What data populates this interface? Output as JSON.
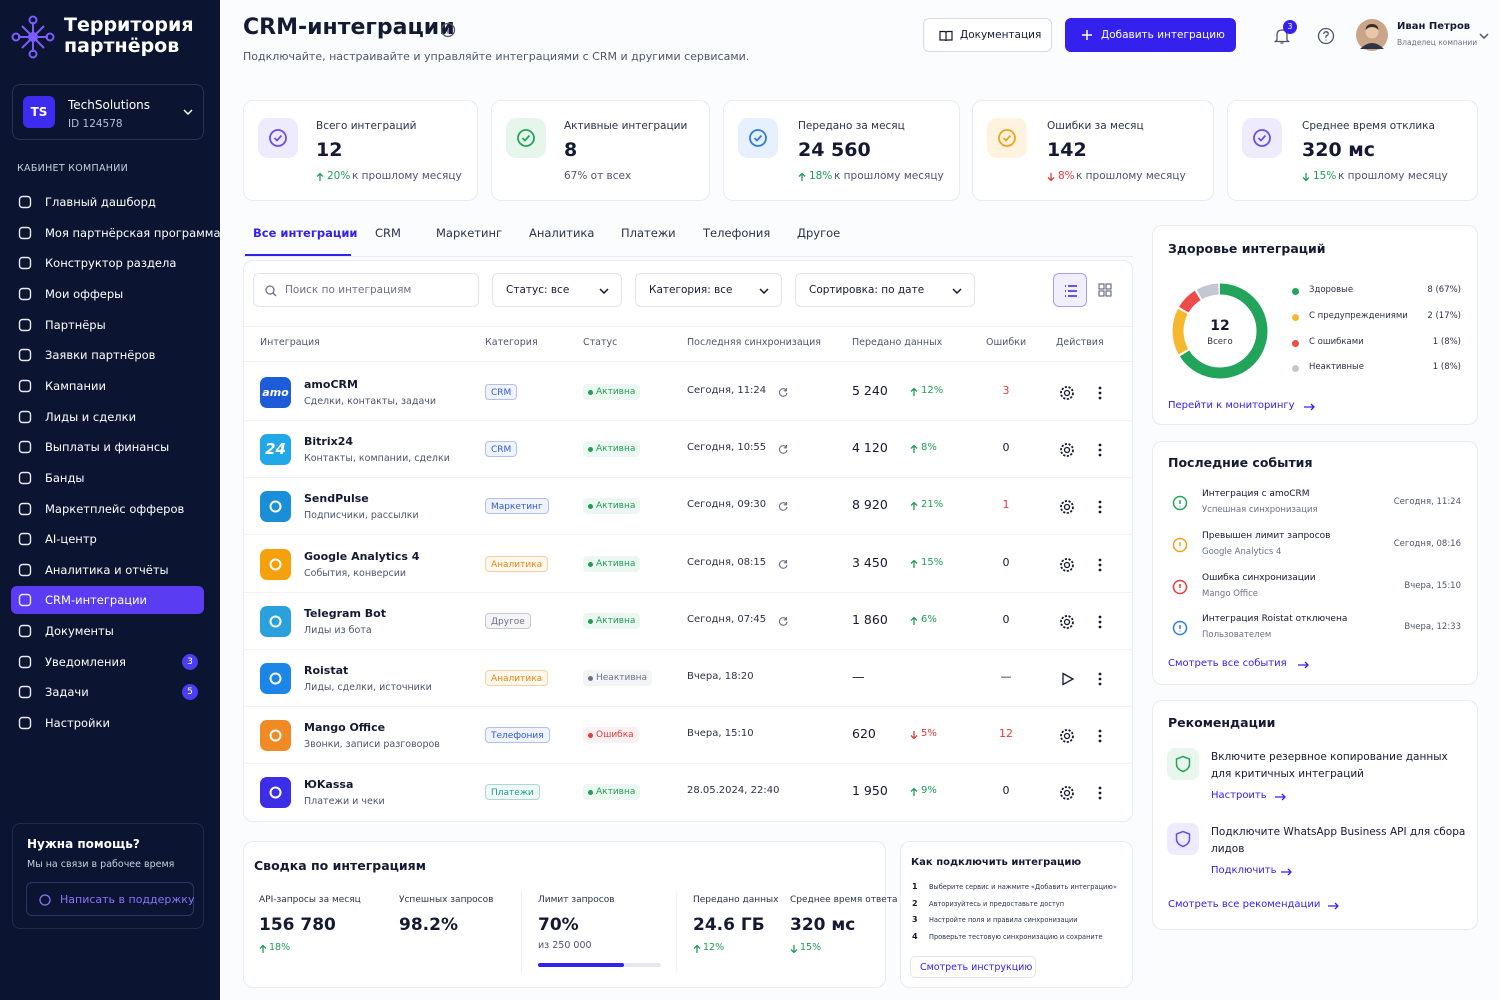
{
  "sidebar": {
    "brand": "Территория партнёров",
    "company": {
      "initials": "TS",
      "name": "TechSolutions",
      "id": "ID 124578"
    },
    "section": "КАБИНЕТ КОМПАНИИ",
    "menu": [
      {
        "label": "Главный дашборд"
      },
      {
        "label": "Моя партнёрская программа"
      },
      {
        "label": "Конструктор раздела"
      },
      {
        "label": "Мои офферы"
      },
      {
        "label": "Партнёры"
      },
      {
        "label": "Заявки партнёров"
      },
      {
        "label": "Кампании"
      },
      {
        "label": "Лиды и сделки"
      },
      {
        "label": "Выплаты и финансы"
      },
      {
        "label": "Банды"
      },
      {
        "label": "Маркетплейс офферов"
      },
      {
        "label": "AI-центр"
      },
      {
        "label": "Аналитика и отчёты"
      },
      {
        "label": "CRM-интеграции",
        "active": true
      },
      {
        "label": "Документы"
      },
      {
        "label": "Уведомления",
        "badge": "3"
      },
      {
        "label": "Задачи",
        "badge": "5"
      },
      {
        "label": "Настройки"
      }
    ],
    "help": {
      "title": "Нужна помощь?",
      "text": "Мы на связи в рабочее время",
      "button": "Написать в поддержку"
    }
  },
  "header": {
    "title": "CRM-интеграции",
    "subtitle": "Подключайте, настраивайте и управляйте интеграциями с CRM и другими сервисами.",
    "docs": "Документация",
    "add": "Добавить интеграцию",
    "notifications": "3",
    "user": {
      "name": "Иван Петров",
      "role": "Владелец компании"
    }
  },
  "kpis": [
    {
      "label": "Всего интеграций",
      "value": "12",
      "delta": "20%",
      "note": "к прошлому месяцу",
      "trend": "up",
      "delta_color": "#1f9d55",
      "icon_color": "#6a4cf0",
      "icon_bg": "#efebfe"
    },
    {
      "label": "Активные интеграции",
      "value": "8",
      "note": "67% от всех",
      "icon_color": "#22a55a",
      "icon_bg": "#e6f6ec"
    },
    {
      "label": "Передано за месяц",
      "value": "24 560",
      "delta": "18%",
      "note": "к прошлому месяцу",
      "trend": "up",
      "delta_color": "#1f9d55",
      "icon_color": "#2f7be6",
      "icon_bg": "#e7f0fd"
    },
    {
      "label": "Ошибки за месяц",
      "value": "142",
      "delta": "8%",
      "note": "к прошлому месяцу",
      "trend": "down",
      "delta_color": "#e23b3b",
      "icon_color": "#f0a21b",
      "icon_bg": "#fdf3df"
    },
    {
      "label": "Среднее время отклика",
      "value": "320 мс",
      "delta": "15%",
      "note": "к прошлому месяцу",
      "trend": "down",
      "delta_color": "#1f9d55",
      "icon_color": "#6a4cf0",
      "icon_bg": "#efebfe"
    }
  ],
  "tabs": [
    "Все интеграции",
    "CRM",
    "Маркетинг",
    "Аналитика",
    "Платежи",
    "Телефония",
    "Другое"
  ],
  "filters": {
    "search": "Поиск по интеграциям",
    "status": "Статус: все",
    "category": "Категория: все",
    "sort": "Сортировка: по дате"
  },
  "table": {
    "columns": [
      "Интеграция",
      "Категория",
      "Статус",
      "Последняя синхронизация",
      "Передано данных",
      "Ошибки",
      "Действия"
    ],
    "rows": [
      {
        "name": "amoCRM",
        "desc": "Сделки, контакты, задачи",
        "logo_text": "amo",
        "logo_color": "#1e5bd6",
        "category": "CRM",
        "tag_color": "#2f5bd8",
        "status": "Активна",
        "status_color": "#1f9d55",
        "sync": "Сегодня, 11:24",
        "sync_icon": true,
        "data": "5 240",
        "delta": "12%",
        "trend": "up",
        "delta_color": "#1f9d55",
        "errors": "3",
        "action": "settings"
      },
      {
        "name": "Bitrix24",
        "desc": "Контакты, компании, сделки",
        "logo_text": "24",
        "logo_color": "#22a7e8",
        "category": "CRM",
        "tag_color": "#2f5bd8",
        "status": "Активна",
        "status_color": "#1f9d55",
        "sync": "Сегодня, 10:55",
        "sync_icon": true,
        "data": "4 120",
        "delta": "8%",
        "trend": "up",
        "delta_color": "#1f9d55",
        "errors": "0",
        "action": "settings"
      },
      {
        "name": "SendPulse",
        "desc": "Подписчики, рассылки",
        "logo_color": "#1a8fd8",
        "category": "Маркетинг",
        "tag_color": "#2f5bd8",
        "status": "Активна",
        "status_color": "#1f9d55",
        "sync": "Сегодня, 09:30",
        "sync_icon": true,
        "data": "8 920",
        "delta": "21%",
        "trend": "up",
        "delta_color": "#1f9d55",
        "errors": "1",
        "action": "settings"
      },
      {
        "name": "Google Analytics 4",
        "desc": "События, конверсии",
        "logo_color": "#f4a10c",
        "category": "Аналитика",
        "tag_color": "#e58a0c",
        "status": "Активна",
        "status_color": "#1f9d55",
        "sync": "Сегодня, 08:15",
        "sync_icon": true,
        "data": "3 450",
        "delta": "15%",
        "trend": "up",
        "delta_color": "#1f9d55",
        "errors": "0",
        "action": "settings"
      },
      {
        "name": "Telegram Bot",
        "desc": "Лиды из бота",
        "logo_color": "#2aa1dc",
        "category": "Другое",
        "tag_color": "#6b7287",
        "status": "Активна",
        "status_color": "#1f9d55",
        "sync": "Сегодня, 07:45",
        "sync_icon": true,
        "data": "1 860",
        "delta": "6%",
        "trend": "up",
        "delta_color": "#1f9d55",
        "errors": "0",
        "action": "settings"
      },
      {
        "name": "Roistat",
        "desc": "Лиды, сделки, источники",
        "logo_color": "#1b86e8",
        "category": "Аналитика",
        "tag_color": "#e58a0c",
        "status": "Неактивна",
        "status_color": "#6b7287",
        "sync": "Вчера, 18:20",
        "data": "—",
        "errors": "—",
        "action": "play"
      },
      {
        "name": "Mango Office",
        "desc": "Звонки, записи разговоров",
        "logo_color": "#f08a24",
        "category": "Телефония",
        "tag_color": "#2f5bd8",
        "status": "Ошибка",
        "status_color": "#e23b3b",
        "sync": "Вчера, 15:10",
        "data": "620",
        "delta": "5%",
        "trend": "down",
        "delta_color": "#e23b3b",
        "errors": "12",
        "action": "settings"
      },
      {
        "name": "ЮKassa",
        "desc": "Платежи и чеки",
        "logo_color": "#3b2ee6",
        "category": "Платежи",
        "tag_color": "#1f9d8a",
        "status": "Активна",
        "status_color": "#1f9d55",
        "sync": "28.05.2024, 22:40",
        "data": "1 950",
        "delta": "9%",
        "trend": "up",
        "delta_color": "#1f9d55",
        "errors": "0",
        "action": "settings"
      }
    ]
  },
  "health": {
    "title": "Здоровье интеграций",
    "total": "12",
    "total_label": "Всего",
    "items": [
      {
        "label": "Здоровые",
        "value": 8,
        "value_label": "8 (67%)",
        "color": "#22a55a"
      },
      {
        "label": "С предупреждениями",
        "value": 2,
        "value_label": "2 (17%)",
        "color": "#f5b82e"
      },
      {
        "label": "С ошибками",
        "value": 1,
        "value_label": "1 (8%)",
        "color": "#ef4a4a"
      },
      {
        "label": "Неактивные",
        "value": 1,
        "value_label": "1 (8%)",
        "color": "#c3c7d1"
      }
    ],
    "link": "Перейти к мониторингу"
  },
  "events": {
    "title": "Последние события",
    "items": [
      {
        "title": "Интеграция с amoCRM",
        "sub": "Успешная синхронизация",
        "time": "Сегодня, 11:24",
        "color": "#22a55a"
      },
      {
        "title": "Превышен лимит запросов",
        "sub": "Google Analytics 4",
        "time": "Сегодня, 08:16",
        "color": "#f0a21b"
      },
      {
        "title": "Ошибка синхронизации",
        "sub": "Mango Office",
        "time": "Вчера, 15:10",
        "color": "#e23b3b"
      },
      {
        "title": "Интеграция Roistat отключена",
        "sub": "Пользователем",
        "time": "Вчера, 12:33",
        "color": "#2f7be6"
      }
    ],
    "link": "Смотреть все события"
  },
  "recommendations": {
    "title": "Рекомендации",
    "items": [
      {
        "text": "Включите резервное копирование данных для критичных интеграций",
        "link": "Настроить",
        "color": "#22a55a",
        "bg": "#e8f6ee"
      },
      {
        "text": "Подключите WhatsApp Business API для сбора лидов",
        "link": "Подключить",
        "color": "#6a4cf0",
        "bg": "#efebfe"
      }
    ],
    "link": "Смотреть все рекомендации"
  },
  "summary": {
    "title": "Сводка по интеграциям",
    "stats": [
      {
        "label": "API-запросы за месяц",
        "value": "156 780",
        "delta": "18%",
        "trend": "up",
        "delta_color": "#1f9d55"
      },
      {
        "label": "Успешных запросов",
        "value": "98.2%"
      },
      {
        "label": "Лимит запросов",
        "value": "70%",
        "sub": "из 250 000",
        "progress": 70
      },
      {
        "label": "Передано данных",
        "value": "24.6 ГБ",
        "delta": "12%",
        "trend": "up",
        "delta_color": "#1f9d55"
      },
      {
        "label": "Среднее время ответа",
        "value": "320 мс",
        "delta": "15%",
        "trend": "down",
        "delta_color": "#1f9d55"
      }
    ]
  },
  "guide": {
    "title": "Как подключить интеграцию",
    "steps": [
      {
        "n": "1",
        "text": "Выберите сервис и нажмите «Добавить интеграцию»"
      },
      {
        "n": "2",
        "text": "Авторизуйтесь и предоставьте доступ"
      },
      {
        "n": "3",
        "text": "Настройте поля и правила синхронизации"
      },
      {
        "n": "4",
        "text": "Проверьте тестовую синхронизацию и сохраните"
      }
    ],
    "button": "Смотреть инструкцию"
  }
}
